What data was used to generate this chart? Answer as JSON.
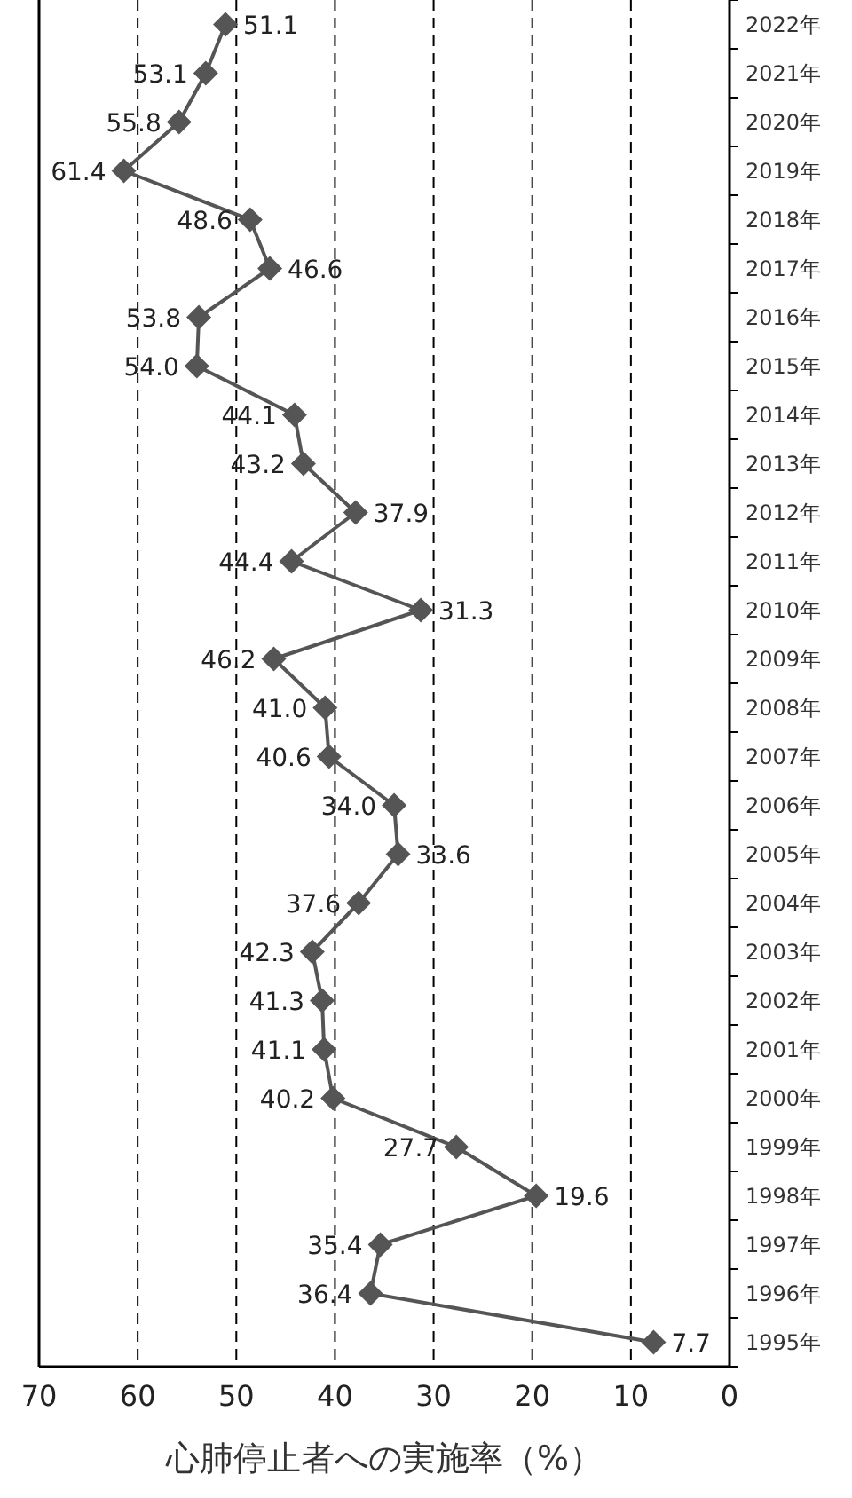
{
  "chart_data": {
    "type": "line",
    "orientation": "horizontal",
    "xlabel": "心肺停止者への実施率（%）",
    "categories": [
      "2022年",
      "2021年",
      "2020年",
      "2019年",
      "2018年",
      "2017年",
      "2016年",
      "2015年",
      "2014年",
      "2013年",
      "2012年",
      "2011年",
      "2010年",
      "2009年",
      "2008年",
      "2007年",
      "2006年",
      "2005年",
      "2004年",
      "2003年",
      "2002年",
      "2001年",
      "2000年",
      "1999年",
      "1998年",
      "1997年",
      "1996年",
      "1995年"
    ],
    "series": [
      {
        "color": "#555555",
        "values": [
          51.1,
          53.1,
          55.8,
          61.4,
          48.6,
          46.6,
          53.8,
          54.0,
          44.1,
          43.2,
          37.9,
          44.4,
          31.3,
          46.2,
          41.0,
          40.6,
          34.0,
          33.6,
          37.6,
          42.3,
          41.3,
          41.1,
          40.2,
          27.7,
          19.6,
          35.4,
          36.4,
          7.7
        ],
        "value_labels": [
          "51.1",
          "53.1",
          "55.8",
          "61.4",
          "48.6",
          "46.6",
          "53.8",
          "54.0",
          "44.1",
          "43.2",
          "37.9",
          "44.4",
          "31.3",
          "46.2",
          "41.0",
          "40.6",
          "34.0",
          "33.6",
          "37.6",
          "42.3",
          "41.3",
          "41.1",
          "40.2",
          "27.7",
          "19.6",
          "35.4",
          "36.4",
          "7.7"
        ]
      }
    ],
    "xlim": [
      70,
      0
    ],
    "xticks": [
      0,
      10,
      20,
      30,
      40,
      50,
      60,
      70
    ],
    "grid": "x",
    "marker": "diamond",
    "line_style": "solid"
  }
}
